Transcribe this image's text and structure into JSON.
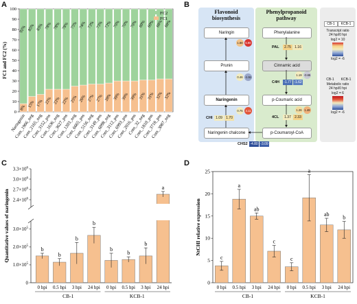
{
  "panels": {
    "a": "A",
    "b": "B",
    "c": "C",
    "d": "D"
  },
  "chart_data": [
    {
      "id": "A",
      "type": "bar",
      "stacked": true,
      "ylabel": "FC1 and FC2 (%)",
      "ylim": [
        0,
        100
      ],
      "yticks": [
        0,
        10,
        20,
        30,
        40,
        50,
        60,
        70,
        80,
        90,
        100
      ],
      "categories": [
        "Naringenin",
        "Com_1966_neg",
        "Com_2165_neg",
        "Com_3152_pos",
        "Com_1636_neg",
        "Com_3627_pos",
        "Com_1203_neg",
        "Com_6665_pos",
        "Com_5156_neg",
        "Com_3149_pos",
        "Com_6098_neg",
        "Com_3112_pos",
        "Com_6993_pos",
        "Com_2016_pos",
        "Com_32_neg",
        "Com_1810_pos",
        "Com_3718_pos",
        "Com_3087_neg"
      ],
      "series": [
        {
          "name": "FC1",
          "color": "#f6c08f",
          "values": [
            8,
            15,
            17,
            22,
            22,
            22,
            25,
            26,
            27,
            27,
            28,
            30,
            30,
            30,
            31,
            31,
            32,
            32
          ]
        },
        {
          "name": "FC2",
          "color": "#9ed39c",
          "values": [
            92,
            85,
            83,
            78,
            78,
            78,
            75,
            74,
            73,
            73,
            72,
            70,
            70,
            70,
            69,
            69,
            68,
            68
          ]
        }
      ],
      "legend": [
        "FC2",
        "FC1"
      ],
      "legend_position": "top-right"
    },
    {
      "id": "C",
      "type": "bar",
      "ylabel": "Quantitative values of naringenin",
      "yaxis_broken": true,
      "yticks_lower": [
        "0",
        "1.0x10^5",
        "2.0x10^5",
        "3.0x10^5"
      ],
      "yticks_upper": [
        "2.4x10^6",
        "2.7x10^6",
        "3.0x10^6",
        "3.3x10^6"
      ],
      "categories": [
        "0 hpi",
        "0.5 hpi",
        "3 hpi",
        "24 hpi",
        "0 hpi",
        "0.5 hpi",
        "3 hpi",
        "24 hpi"
      ],
      "groups": [
        "CB-1",
        "KCB-1"
      ],
      "values": [
        150000,
        115000,
        165000,
        265000,
        125000,
        130000,
        150000,
        2560000
      ],
      "errors": [
        15000,
        20000,
        60000,
        45000,
        40000,
        15000,
        45000,
        80000
      ],
      "letters": [
        "b",
        "b",
        "b",
        "b",
        "b",
        "b",
        "b",
        "a"
      ],
      "bar_color": "#f6c08f"
    },
    {
      "id": "D",
      "type": "bar",
      "ylabel": "NtCHI relative expression",
      "ylim": [
        0,
        25
      ],
      "yticks": [
        0,
        5,
        10,
        15,
        20,
        25
      ],
      "categories": [
        "0 hpi",
        "0.5 hpi",
        "3 hpi",
        "24 hpi",
        "0 hpi",
        "0.5 hpi",
        "3 hpi",
        "24 hpi"
      ],
      "groups": [
        "CB-1",
        "KCB-1"
      ],
      "values": [
        3.8,
        18.8,
        15.0,
        7.1,
        3.6,
        19.1,
        13.0,
        11.9
      ],
      "errors": [
        1.0,
        2.2,
        0.7,
        1.3,
        0.9,
        5.2,
        1.5,
        1.9
      ],
      "letters": [
        "c",
        "a",
        "ab",
        "c",
        "c",
        "a",
        "ab",
        "b"
      ],
      "bar_color": "#f6c08f"
    }
  ],
  "diagram": {
    "col_left_title": "Flavonoid biosynthesis",
    "col_right_title": "Phenylpropanoid pathway",
    "left_nodes": [
      "Naringin",
      "Prunin",
      "Naringenin",
      "Naringenin chalcone"
    ],
    "right_nodes": [
      "Phenylalanine",
      "Cinnamic acid",
      "p-Coumaric acid",
      "p-Coumaroyl-CoA"
    ],
    "enzymes": [
      {
        "name": "PAL",
        "v1": "2.75",
        "v2": "1.16",
        "c1": "#f6d48a",
        "c2": "#f5e9b8"
      },
      {
        "name": "C4H",
        "v1": "-1.77",
        "v2": "-1.62",
        "c1": "#4a6fb5",
        "c2": "#5b7fc0"
      },
      {
        "name": "4CL",
        "v1": "1.37",
        "v2": "2.33",
        "c1": "#f3ecc0",
        "c2": "#f6d48a"
      },
      {
        "name": "CHS2",
        "v1": "-4.80",
        "v2": "-3.09",
        "c1": "#2f4f99",
        "c2": "#3c5ea9"
      },
      {
        "name": "CHI",
        "v1": "1.09",
        "v2": "1.70",
        "c1": "#f3ecc0",
        "c2": "#f5e2a8"
      }
    ],
    "metabolite_dots": [
      {
        "node": "Naringin",
        "v1": "1.88",
        "v2": "5.90",
        "c1": "#f4c48a",
        "c2": "#d8342f"
      },
      {
        "node": "Prunin",
        "v1": "0.46",
        "v2": "-1.51",
        "c1": "#f3ecc0",
        "c2": "#9aa7c9"
      },
      {
        "node": "Naringenin",
        "v1": "0.75",
        "v2": "4.11",
        "c1": "#f3ecc0",
        "c2": "#e2553a"
      },
      {
        "node": "Cinnamic acid",
        "v1": "1.19",
        "v2": "-0.65",
        "c1": "#f3ecc0",
        "c2": "#c9c9d6"
      },
      {
        "node": "p-Coumaric acid",
        "v1": "1.26",
        "v2": "1.48",
        "c1": "#f5dca0",
        "c2": "#f0b27a"
      }
    ],
    "legend": {
      "h1": "CB-1",
      "h2": "KCB-1",
      "t1": "Transcript ratio",
      "t2": "24 hpi/0 hpi",
      "hi": "log2 = 10",
      "lo": "log2 = -6",
      "m1": "Metabolic ratio",
      "m2": "24 hpi/0 hpi",
      "mhi": "log2 = 6",
      "mlo": "log2 = -6",
      "circle1": "CB-1",
      "circle2": "KCB-1"
    }
  }
}
